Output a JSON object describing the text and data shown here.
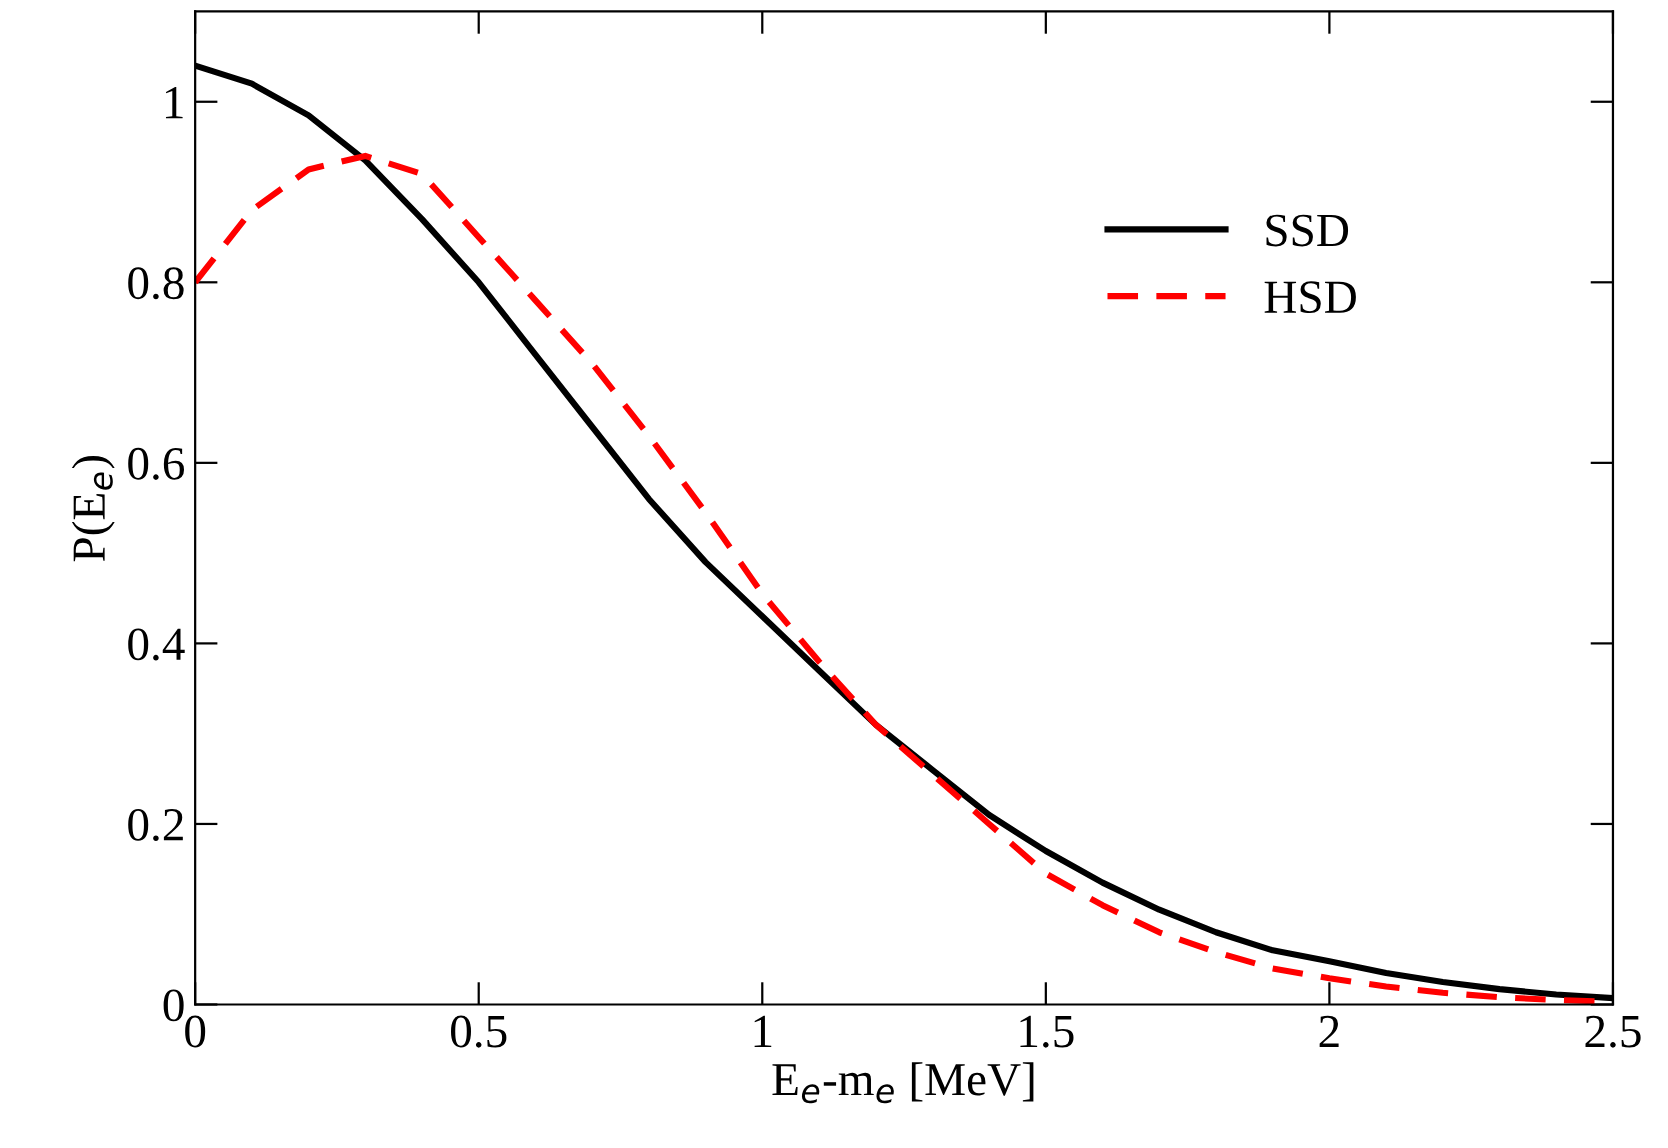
{
  "chart_data": {
    "type": "line",
    "xlabel": "E$_{e}$-m$_{e}$ [MeV]",
    "ylabel": "P(E$_{e}$)",
    "x": [
      0,
      0.1,
      0.2,
      0.3,
      0.4,
      0.5,
      0.6,
      0.7,
      0.8,
      0.9,
      1.0,
      1.1,
      1.2,
      1.3,
      1.4,
      1.5,
      1.6,
      1.7,
      1.8,
      1.9,
      2.0,
      2.1,
      2.2,
      2.3,
      2.4,
      2.5
    ],
    "series": [
      {
        "name": "SSD",
        "color": "#000000",
        "line_style": "solid",
        "values": [
          1.04,
          1.02,
          0.985,
          0.935,
          0.87,
          0.8,
          0.72,
          0.64,
          0.56,
          0.49,
          0.43,
          0.37,
          0.31,
          0.26,
          0.21,
          0.17,
          0.135,
          0.105,
          0.08,
          0.06,
          0.048,
          0.035,
          0.025,
          0.017,
          0.011,
          0.007
        ]
      },
      {
        "name": "HSD",
        "color": "#ff0000",
        "line_style": "dashed",
        "values": [
          0.8,
          0.88,
          0.925,
          0.94,
          0.92,
          0.85,
          0.78,
          0.71,
          0.63,
          0.545,
          0.455,
          0.38,
          0.31,
          0.255,
          0.2,
          0.145,
          0.11,
          0.08,
          0.058,
          0.04,
          0.029,
          0.02,
          0.013,
          0.008,
          0.005,
          0.003
        ]
      }
    ],
    "xlim": [
      0,
      2.5
    ],
    "ylim": [
      0,
      1.1
    ],
    "xticks": [
      0,
      0.5,
      1,
      1.5,
      2,
      2.5
    ],
    "yticks": [
      0,
      0.2,
      0.4,
      0.6,
      0.8,
      1
    ],
    "grid": false,
    "legend": "top right",
    "marker": "none"
  }
}
